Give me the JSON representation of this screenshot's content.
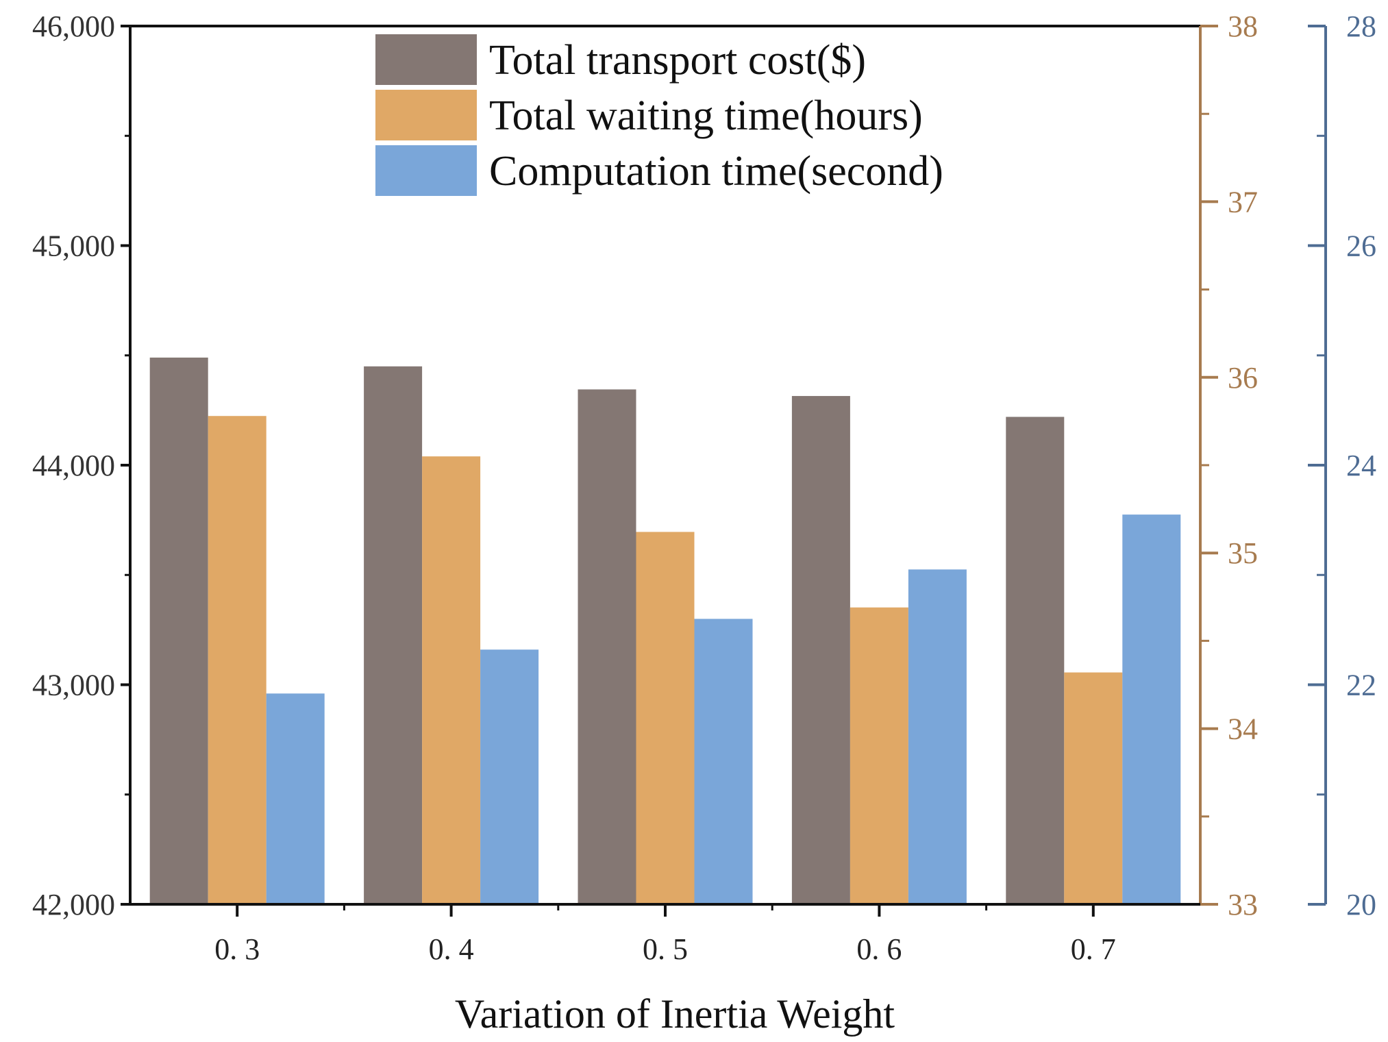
{
  "chart_data": {
    "type": "bar",
    "categories": [
      "0. 3",
      "0. 4",
      "0. 5",
      "0. 6",
      "0. 7"
    ],
    "xlabel": "Variation of Inertia Weight",
    "legend_position": "top-center",
    "grid": false,
    "series": [
      {
        "name": "Total transport cost($)",
        "axis": "left",
        "color": "#847773",
        "values": [
          44490,
          44450,
          44345,
          44315,
          44220
        ]
      },
      {
        "name": "Total waiting time(hours)",
        "axis": "right1",
        "color": "#E0A866",
        "values": [
          35.78,
          35.55,
          35.12,
          34.69,
          34.32
        ]
      },
      {
        "name": "Computation time(second)",
        "axis": "right2",
        "color": "#7AA6D9",
        "values": [
          21.92,
          22.32,
          22.6,
          23.05,
          23.55
        ]
      }
    ],
    "axes": {
      "left": {
        "range": [
          42000,
          46000
        ],
        "major_ticks": [
          42000,
          43000,
          44000,
          45000,
          46000
        ],
        "tick_labels": [
          "42,000",
          "43,000",
          "44,000",
          "45,000",
          "46,000"
        ],
        "color": "#333333"
      },
      "right1": {
        "range": [
          33,
          38
        ],
        "major_ticks": [
          33,
          34,
          35,
          36,
          37,
          38
        ],
        "tick_labels": [
          "33",
          "34",
          "35",
          "36",
          "37",
          "38"
        ],
        "color": "#A77B4F"
      },
      "right2": {
        "range": [
          20,
          28
        ],
        "major_ticks": [
          20,
          22,
          24,
          26,
          28
        ],
        "tick_labels": [
          "20",
          "22",
          "24",
          "26",
          "28"
        ],
        "color": "#4E6C93"
      }
    }
  }
}
